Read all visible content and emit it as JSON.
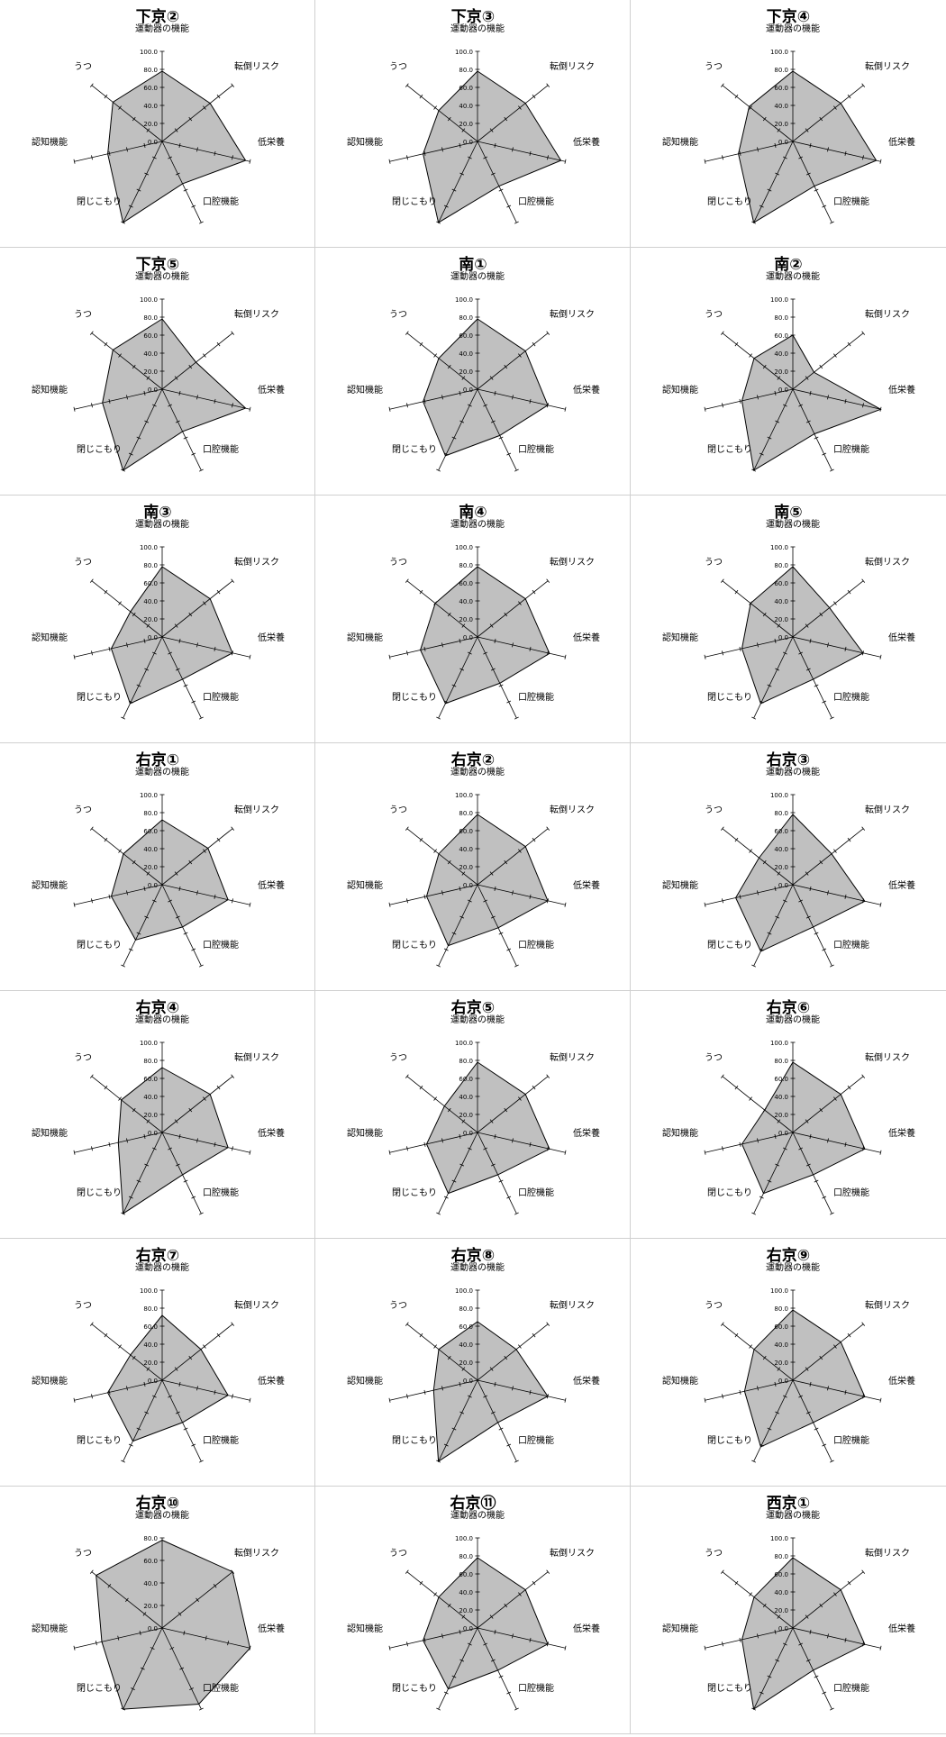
{
  "chart_data": [
    {
      "type": "radar",
      "title": "下京②",
      "axes": [
        "運動器の機能",
        "転倒リスク",
        "低栄養",
        "口腔機能",
        "閉じこもり",
        "認知機能",
        "うつ"
      ],
      "values": [
        78,
        68,
        95,
        52,
        100,
        62,
        70
      ],
      "ticks": [
        "0.0",
        "20.0",
        "40.0",
        "60.0",
        "80.0",
        "100.0"
      ],
      "rmax": 100
    },
    {
      "type": "radar",
      "title": "下京③",
      "axes": [
        "運動器の機能",
        "転倒リスク",
        "低栄養",
        "口腔機能",
        "閉じこもり",
        "認知機能",
        "うつ"
      ],
      "values": [
        78,
        68,
        95,
        55,
        100,
        62,
        55
      ],
      "ticks": [
        "0.0",
        "20.0",
        "40.0",
        "60.0",
        "80.0",
        "100.0"
      ],
      "rmax": 100
    },
    {
      "type": "radar",
      "title": "下京④",
      "axes": [
        "運動器の機能",
        "転倒リスク",
        "低栄養",
        "口腔機能",
        "閉じこもり",
        "認知機能",
        "うつ"
      ],
      "values": [
        78,
        68,
        95,
        55,
        100,
        62,
        62
      ],
      "ticks": [
        "0.0",
        "20.0",
        "40.0",
        "60.0",
        "80.0",
        "100.0"
      ],
      "rmax": 100
    },
    {
      "type": "radar",
      "title": "下京⑤",
      "axes": [
        "運動器の機能",
        "転倒リスク",
        "低栄養",
        "口腔機能",
        "閉じこもり",
        "認知機能",
        "うつ"
      ],
      "values": [
        78,
        48,
        95,
        52,
        100,
        68,
        70
      ],
      "ticks": [
        "0.0",
        "20.0",
        "40.0",
        "60.0",
        "80.0",
        "100.0"
      ],
      "rmax": 100
    },
    {
      "type": "radar",
      "title": "南①",
      "axes": [
        "運動器の機能",
        "転倒リスク",
        "低栄養",
        "口腔機能",
        "閉じこもり",
        "認知機能",
        "うつ"
      ],
      "values": [
        78,
        68,
        80,
        57,
        82,
        62,
        55
      ],
      "ticks": [
        "0.0",
        "20.0",
        "40.0",
        "60.0",
        "80.0",
        "100.0"
      ],
      "rmax": 100
    },
    {
      "type": "radar",
      "title": "南②",
      "axes": [
        "運動器の機能",
        "転倒リスク",
        "低栄養",
        "口腔機能",
        "閉じこもり",
        "認知機能",
        "うつ"
      ],
      "values": [
        60,
        30,
        100,
        55,
        100,
        58,
        55
      ],
      "ticks": [
        "0.0",
        "20.0",
        "40.0",
        "60.0",
        "80.0",
        "100.0"
      ],
      "rmax": 100
    },
    {
      "type": "radar",
      "title": "南③",
      "axes": [
        "運動器の機能",
        "転倒リスク",
        "低栄養",
        "口腔機能",
        "閉じこもり",
        "認知機能",
        "うつ"
      ],
      "values": [
        78,
        68,
        80,
        52,
        82,
        58,
        45
      ],
      "ticks": [
        "0.0",
        "20.0",
        "40.0",
        "60.0",
        "80.0",
        "100.0"
      ],
      "rmax": 100
    },
    {
      "type": "radar",
      "title": "南④",
      "axes": [
        "運動器の機能",
        "転倒リスク",
        "低栄養",
        "口腔機能",
        "閉じこもり",
        "認知機能",
        "うつ"
      ],
      "values": [
        78,
        68,
        82,
        57,
        82,
        65,
        60
      ],
      "ticks": [
        "0.0",
        "20.0",
        "40.0",
        "60.0",
        "80.0",
        "100.0"
      ],
      "rmax": 100
    },
    {
      "type": "radar",
      "title": "南⑤",
      "axes": [
        "運動器の機能",
        "転倒リスク",
        "低栄養",
        "口腔機能",
        "閉じこもり",
        "認知機能",
        "うつ"
      ],
      "values": [
        78,
        52,
        80,
        52,
        82,
        58,
        60
      ],
      "ticks": [
        "0.0",
        "20.0",
        "40.0",
        "60.0",
        "80.0",
        "100.0"
      ],
      "rmax": 100
    },
    {
      "type": "radar",
      "title": "右京①",
      "axes": [
        "運動器の機能",
        "転倒リスク",
        "低栄養",
        "口腔機能",
        "閉じこもり",
        "認知機能",
        "うつ"
      ],
      "values": [
        72,
        65,
        75,
        52,
        68,
        58,
        55
      ],
      "ticks": [
        "0.0",
        "20.0",
        "40.0",
        "60.0",
        "80.0",
        "100.0"
      ],
      "rmax": 100
    },
    {
      "type": "radar",
      "title": "右京②",
      "axes": [
        "運動器の機能",
        "転倒リスク",
        "低栄養",
        "口腔機能",
        "閉じこもり",
        "認知機能",
        "うつ"
      ],
      "values": [
        78,
        68,
        80,
        53,
        75,
        58,
        55
      ],
      "ticks": [
        "0.0",
        "20.0",
        "40.0",
        "60.0",
        "80.0",
        "100.0"
      ],
      "rmax": 100
    },
    {
      "type": "radar",
      "title": "右京③",
      "axes": [
        "運動器の機能",
        "転倒リスク",
        "低栄養",
        "口腔機能",
        "閉じこもり",
        "認知機能",
        "うつ"
      ],
      "values": [
        78,
        55,
        82,
        52,
        82,
        65,
        48
      ],
      "ticks": [
        "0.0",
        "20.0",
        "40.0",
        "60.0",
        "80.0",
        "100.0"
      ],
      "rmax": 100
    },
    {
      "type": "radar",
      "title": "右京④",
      "axes": [
        "運動器の機能",
        "転倒リスク",
        "低栄養",
        "口腔機能",
        "閉じこもり",
        "認知機能",
        "うつ"
      ],
      "values": [
        72,
        68,
        75,
        52,
        100,
        50,
        58
      ],
      "ticks": [
        "0.0",
        "20.0",
        "40.0",
        "60.0",
        "80.0",
        "100.0"
      ],
      "rmax": 100
    },
    {
      "type": "radar",
      "title": "右京⑤",
      "axes": [
        "運動器の機能",
        "転倒リスク",
        "低栄養",
        "口腔機能",
        "閉じこもり",
        "認知機能",
        "うつ"
      ],
      "values": [
        78,
        68,
        82,
        52,
        75,
        58,
        47
      ],
      "ticks": [
        "0.0",
        "20.0",
        "40.0",
        "60.0",
        "80.0",
        "100.0"
      ],
      "rmax": 100
    },
    {
      "type": "radar",
      "title": "右京⑥",
      "axes": [
        "運動器の機能",
        "転倒リスク",
        "低栄養",
        "口腔機能",
        "閉じこもり",
        "認知機能",
        "うつ"
      ],
      "values": [
        78,
        68,
        82,
        52,
        75,
        58,
        40
      ],
      "ticks": [
        "0.0",
        "20.0",
        "40.0",
        "60.0",
        "80.0",
        "100.0"
      ],
      "rmax": 100
    },
    {
      "type": "radar",
      "title": "右京⑦",
      "axes": [
        "運動器の機能",
        "転倒リスク",
        "低栄養",
        "口腔機能",
        "閉じこもり",
        "認知機能",
        "うつ"
      ],
      "values": [
        72,
        55,
        75,
        52,
        75,
        62,
        45
      ],
      "ticks": [
        "0.0",
        "20.0",
        "40.0",
        "60.0",
        "80.0",
        "100.0"
      ],
      "rmax": 100
    },
    {
      "type": "radar",
      "title": "右京⑧",
      "axes": [
        "運動器の機能",
        "転倒リスク",
        "低栄養",
        "口腔機能",
        "閉じこもり",
        "認知機能",
        "うつ"
      ],
      "values": [
        65,
        55,
        80,
        52,
        100,
        50,
        55
      ],
      "ticks": [
        "0.0",
        "20.0",
        "40.0",
        "60.0",
        "80.0",
        "100.0"
      ],
      "rmax": 100
    },
    {
      "type": "radar",
      "title": "右京⑨",
      "axes": [
        "運動器の機能",
        "転倒リスク",
        "低栄養",
        "口腔機能",
        "閉じこもり",
        "認知機能",
        "うつ"
      ],
      "values": [
        78,
        68,
        82,
        52,
        82,
        55,
        55
      ],
      "ticks": [
        "0.0",
        "20.0",
        "40.0",
        "60.0",
        "80.0",
        "100.0"
      ],
      "rmax": 100
    },
    {
      "type": "radar",
      "title": "右京⑩",
      "axes": [
        "運動器の機能",
        "転倒リスク",
        "低栄養",
        "口腔機能",
        "閉じこもり",
        "認知機能",
        "うつ"
      ],
      "values": [
        78,
        80,
        100,
        75,
        82,
        55,
        75
      ],
      "ticks": [
        "0.0",
        "20.0",
        "40.0",
        "60.0",
        "80.0"
      ],
      "rmax": 80
    },
    {
      "type": "radar",
      "title": "右京⑪",
      "axes": [
        "運動器の機能",
        "転倒リスク",
        "低栄養",
        "口腔機能",
        "閉じこもり",
        "認知機能",
        "うつ"
      ],
      "values": [
        78,
        68,
        80,
        52,
        75,
        62,
        55
      ],
      "ticks": [
        "0.0",
        "20.0",
        "40.0",
        "60.0",
        "80.0",
        "100.0"
      ],
      "rmax": 100
    },
    {
      "type": "radar",
      "title": "西京①",
      "axes": [
        "運動器の機能",
        "転倒リスク",
        "低栄養",
        "口腔機能",
        "閉じこもり",
        "認知機能",
        "うつ"
      ],
      "values": [
        78,
        68,
        82,
        52,
        100,
        58,
        55
      ],
      "ticks": [
        "0.0",
        "20.0",
        "40.0",
        "60.0",
        "80.0",
        "100.0"
      ],
      "rmax": 100
    }
  ],
  "colors": {
    "fill": "#c0c0c0",
    "stroke": "#000000",
    "border": "#d0d0d0"
  }
}
